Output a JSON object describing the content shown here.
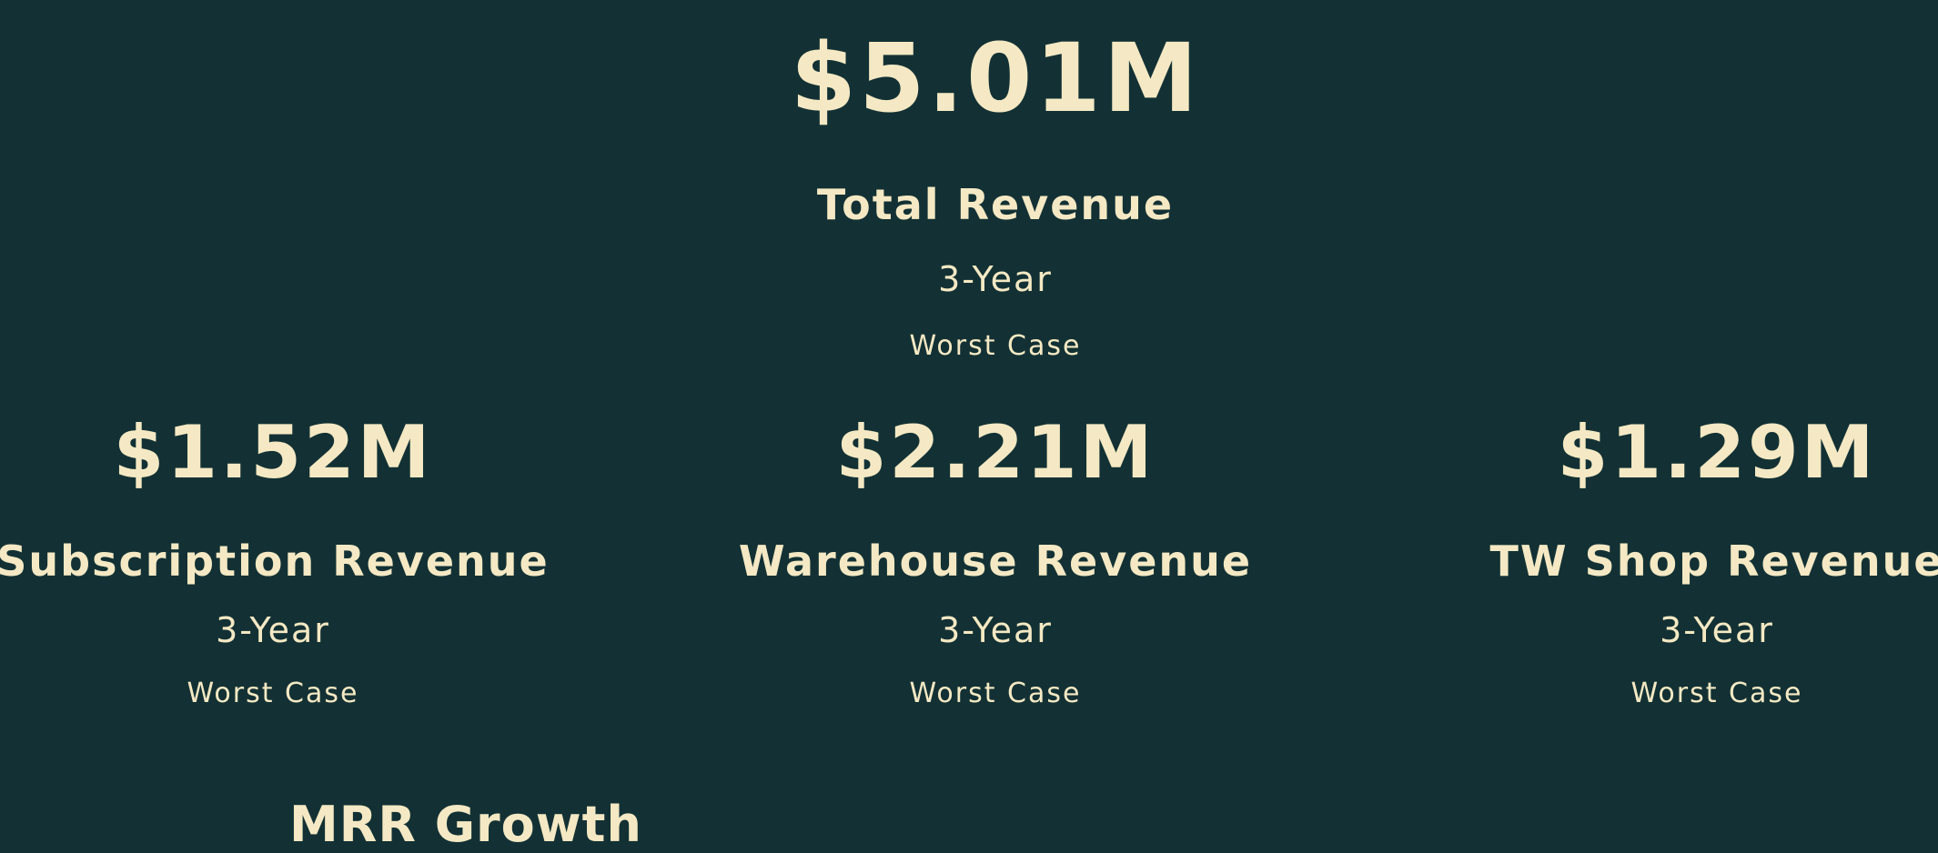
{
  "total": {
    "value": "$5.01M",
    "title": "Total Revenue",
    "period": "3-Year",
    "scenario": "Worst Case"
  },
  "cards": [
    {
      "value": "$1.52M",
      "title": "Subscription Revenue",
      "period": "3-Year",
      "scenario": "Worst Case"
    },
    {
      "value": "$2.21M",
      "title": "Warehouse Revenue",
      "period": "3-Year",
      "scenario": "Worst Case"
    },
    {
      "value": "$1.29M",
      "title": "TW Shop Revenue",
      "period": "3-Year",
      "scenario": "Worst Case"
    }
  ],
  "next_section": {
    "heading": "MRR Growth"
  },
  "colors": {
    "background": "#133134",
    "text": "#f4e9c4"
  }
}
